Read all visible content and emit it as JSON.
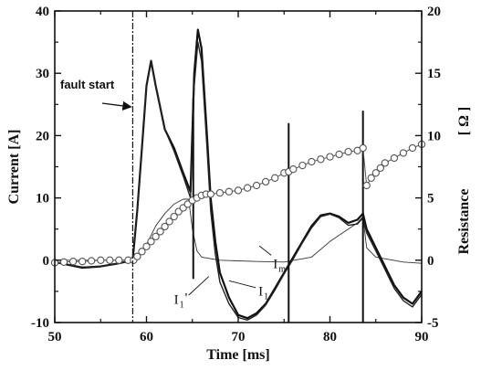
{
  "chart_data": {
    "type": "line",
    "xlabel": "Time [ms]",
    "ylabel_left": "Current [A]",
    "ylabel_right_text": "Resistance",
    "ylabel_right_unit": "[ Ω ]",
    "xlim": [
      50,
      90
    ],
    "ylim_left": [
      -10,
      40
    ],
    "ylim_right": [
      -5,
      20
    ],
    "x_ticks": [
      50,
      60,
      70,
      80,
      90
    ],
    "y_left_ticks": [
      -10,
      0,
      10,
      20,
      30,
      40
    ],
    "y_right_ticks": [
      -5,
      0,
      5,
      10,
      15,
      20
    ],
    "grid": false,
    "annotation": {
      "text": "fault start",
      "x": 58.5
    },
    "curve_labels": [
      {
        "main": "I",
        "sub": "m",
        "x": 73.8,
        "y": -1.3
      },
      {
        "main": "I",
        "sub": "1",
        "x": 72.2,
        "y": -5.7
      },
      {
        "main": "I",
        "sub": "1",
        "prime": "'",
        "x": 63.0,
        "y": -7.0
      }
    ],
    "series": [
      {
        "id": "s-im",
        "axis": "left",
        "style": "thin",
        "points": [
          [
            50,
            0
          ],
          [
            58.5,
            0
          ],
          [
            59,
            0.2
          ],
          [
            60,
            2.5
          ],
          [
            61,
            5.5
          ],
          [
            62,
            7.5
          ],
          [
            63,
            9
          ],
          [
            64,
            9.8
          ],
          [
            64.6,
            9.8
          ],
          [
            65,
            5
          ],
          [
            65.5,
            1.5
          ],
          [
            66,
            0.5
          ],
          [
            68,
            0
          ],
          [
            72,
            -0.2
          ],
          [
            75,
            -0.3
          ],
          [
            78,
            0.5
          ],
          [
            80,
            3
          ],
          [
            82,
            5
          ],
          [
            83,
            6
          ],
          [
            83.6,
            7
          ],
          [
            84,
            2
          ],
          [
            85,
            0.5
          ],
          [
            88,
            -0.3
          ],
          [
            90,
            -0.5
          ]
        ]
      },
      {
        "id": "s-i1",
        "axis": "left",
        "style": "thick",
        "points": [
          [
            50,
            -0.3
          ],
          [
            53,
            -1.2
          ],
          [
            55,
            -1
          ],
          [
            57,
            -0.5
          ],
          [
            58.5,
            0
          ],
          [
            59,
            8
          ],
          [
            59.5,
            18
          ],
          [
            60,
            28
          ],
          [
            60.5,
            32
          ],
          [
            61,
            28
          ],
          [
            62,
            21
          ],
          [
            63,
            18
          ],
          [
            64,
            14
          ],
          [
            64.8,
            11
          ],
          [
            65.2,
            30
          ],
          [
            65.6,
            37
          ],
          [
            66,
            34
          ],
          [
            66.6,
            20
          ],
          [
            67,
            10
          ],
          [
            67.5,
            3
          ],
          [
            68,
            -2
          ],
          [
            69,
            -6
          ],
          [
            70,
            -8.8
          ],
          [
            71,
            -9.3
          ],
          [
            72,
            -8.5
          ],
          [
            73,
            -7
          ],
          [
            74,
            -4.5
          ],
          [
            75,
            -2
          ],
          [
            76,
            0.5
          ],
          [
            77,
            3
          ],
          [
            78,
            5.5
          ],
          [
            79,
            7.2
          ],
          [
            80,
            7.5
          ],
          [
            81,
            7
          ],
          [
            82,
            6
          ],
          [
            83,
            6.5
          ],
          [
            83.6,
            7.5
          ],
          [
            84,
            5
          ],
          [
            85,
            2
          ],
          [
            86,
            -1
          ],
          [
            87,
            -4
          ],
          [
            88,
            -6
          ],
          [
            89,
            -7
          ],
          [
            90,
            -5
          ]
        ]
      },
      {
        "id": "s-i1p",
        "axis": "left",
        "style": "medium",
        "points": [
          [
            50,
            -0.3
          ],
          [
            53,
            -1.1
          ],
          [
            55,
            -1
          ],
          [
            57,
            -0.5
          ],
          [
            58.5,
            0
          ],
          [
            59,
            8
          ],
          [
            59.5,
            18
          ],
          [
            60,
            28
          ],
          [
            60.5,
            32
          ],
          [
            61,
            28
          ],
          [
            62,
            21
          ],
          [
            63,
            17.5
          ],
          [
            64,
            13.5
          ],
          [
            64.8,
            10
          ],
          [
            65.2,
            28
          ],
          [
            65.6,
            35
          ],
          [
            66,
            32
          ],
          [
            66.6,
            18
          ],
          [
            67,
            8
          ],
          [
            67.5,
            1
          ],
          [
            68,
            -3.5
          ],
          [
            69,
            -7
          ],
          [
            70,
            -9.2
          ],
          [
            71,
            -9.6
          ],
          [
            72,
            -8.8
          ],
          [
            73,
            -7.2
          ],
          [
            74,
            -4.8
          ],
          [
            75,
            -2.2
          ],
          [
            76,
            0.2
          ],
          [
            77,
            2.8
          ],
          [
            78,
            5.2
          ],
          [
            79,
            7
          ],
          [
            80,
            7.4
          ],
          [
            81,
            6.8
          ],
          [
            82,
            5.6
          ],
          [
            83,
            5.8
          ],
          [
            83.6,
            6.8
          ],
          [
            84,
            4.4
          ],
          [
            85,
            1.5
          ],
          [
            86,
            -1.5
          ],
          [
            87,
            -4.5
          ],
          [
            88,
            -6.5
          ],
          [
            89,
            -7.5
          ],
          [
            90,
            -5.5
          ]
        ]
      },
      {
        "id": "s-resistance",
        "axis": "right",
        "style": "markers",
        "points": [
          [
            50,
            -0.2
          ],
          [
            51,
            -0.15
          ],
          [
            52,
            -0.1
          ],
          [
            53,
            -0.1
          ],
          [
            54,
            -0.05
          ],
          [
            55,
            0
          ],
          [
            56,
            0
          ],
          [
            57,
            0
          ],
          [
            58,
            0
          ],
          [
            58.6,
            0
          ],
          [
            59,
            0.3
          ],
          [
            59.5,
            0.7
          ],
          [
            60,
            1.1
          ],
          [
            60.5,
            1.5
          ],
          [
            61,
            1.9
          ],
          [
            61.5,
            2.3
          ],
          [
            62,
            2.7
          ],
          [
            62.5,
            3.1
          ],
          [
            63,
            3.5
          ],
          [
            63.5,
            3.9
          ],
          [
            64,
            4.2
          ],
          [
            64.5,
            4.5
          ],
          [
            65,
            4.8
          ],
          [
            65.5,
            5
          ],
          [
            66,
            5.2
          ],
          [
            66.5,
            5.3
          ],
          [
            67,
            5.3
          ],
          [
            68,
            5.4
          ],
          [
            69,
            5.5
          ],
          [
            70,
            5.6
          ],
          [
            71,
            5.8
          ],
          [
            72,
            6
          ],
          [
            73,
            6.3
          ],
          [
            74,
            6.6
          ],
          [
            75,
            7
          ],
          [
            75.5,
            7.1
          ],
          [
            76,
            7.3
          ],
          [
            77,
            7.6
          ],
          [
            78,
            7.9
          ],
          [
            79,
            8.1
          ],
          [
            80,
            8.3
          ],
          [
            81,
            8.5
          ],
          [
            82,
            8.7
          ],
          [
            83,
            8.8
          ],
          [
            83.6,
            9
          ],
          [
            84,
            6
          ],
          [
            84.5,
            6.6
          ],
          [
            85,
            7
          ],
          [
            85.5,
            7.4
          ],
          [
            86,
            7.8
          ],
          [
            87,
            8.2
          ],
          [
            88,
            8.6
          ],
          [
            89,
            9
          ],
          [
            90,
            9.3
          ]
        ]
      }
    ],
    "spikes": [
      {
        "x": 65.1,
        "y_top_left": 26,
        "y_bottom_left": -3
      },
      {
        "x": 75.5,
        "y_top_left": 22,
        "y_bottom_left": -10
      },
      {
        "x": 83.6,
        "y_top_left": 24,
        "y_bottom_left": -10
      }
    ]
  }
}
